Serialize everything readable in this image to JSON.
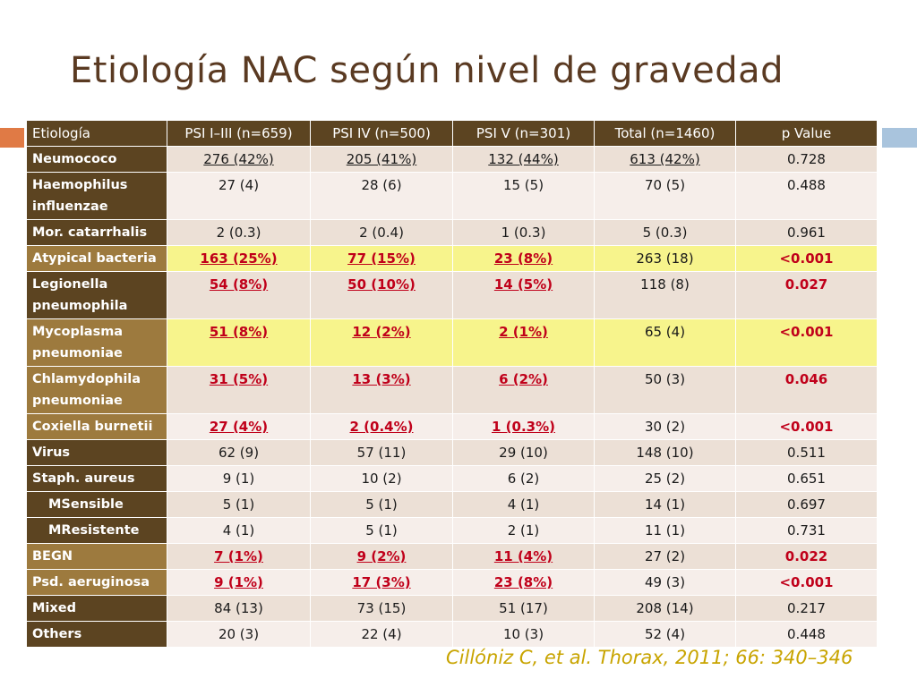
{
  "slide": {
    "title": "Etiología NAC según nivel de gravedad",
    "citation": "Cillóniz C, et al. Thorax, 2011;  66: 340–346"
  },
  "table": {
    "headers": [
      "Etiología",
      "PSI I–III (n=659)",
      "PSI IV (n=500)",
      "PSI V (n=301)",
      "Total (n=1460)",
      "p Value"
    ],
    "rows": [
      {
        "label": "Neumococo",
        "cells": [
          "276 (42%)",
          "205 (41%)",
          "132 (44%)",
          "613 (42%)",
          "0.728"
        ]
      },
      {
        "label": "Haemophilus influenzae",
        "cells": [
          "27 (4)",
          "28 (6)",
          "15 (5)",
          "70 (5)",
          "0.488"
        ]
      },
      {
        "label": "Mor. catarrhalis",
        "cells": [
          "2 (0.3)",
          "2 (0.4)",
          "1 (0.3)",
          "5 (0.3)",
          "0.961"
        ]
      },
      {
        "label": "Atypical bacteria",
        "cells": [
          "163 (25%)",
          "77 (15%)",
          "23 (8%)",
          "263 (18)",
          "<0.001"
        ]
      },
      {
        "label": "Legionella pneumophila",
        "cells": [
          "54 (8%)",
          "50 (10%)",
          "14 (5%)",
          "118 (8)",
          "0.027"
        ]
      },
      {
        "label": "Mycoplasma pneumoniae",
        "cells": [
          "51 (8%)",
          "12 (2%)",
          "2 (1%)",
          "65 (4)",
          "<0.001"
        ]
      },
      {
        "label": "Chlamydophila pneumoniae",
        "cells": [
          "31 (5%)",
          "13 (3%)",
          "6 (2%)",
          "50 (3)",
          "0.046"
        ]
      },
      {
        "label": "Coxiella burnetii",
        "cells": [
          "27 (4%)",
          "2 (0.4%)",
          "1 (0.3%)",
          "30 (2)",
          "<0.001"
        ]
      },
      {
        "label": "Virus",
        "cells": [
          "62 (9)",
          "57 (11)",
          "29 (10)",
          "148 (10)",
          "0.511"
        ]
      },
      {
        "label": "Staph.  aureus",
        "cells": [
          "9 (1)",
          "10 (2)",
          "6 (2)",
          "25 (2)",
          "0.651"
        ]
      },
      {
        "label": "MSensible",
        "cells": [
          "5 (1)",
          "5 (1)",
          "4 (1)",
          "14 (1)",
          "0.697"
        ]
      },
      {
        "label": "MResistente",
        "cells": [
          "4 (1)",
          "5 (1)",
          "2 (1)",
          "11 (1)",
          "0.731"
        ]
      },
      {
        "label": "BEGN",
        "cells": [
          "7 (1%)",
          "9 (2%)",
          "11 (4%)",
          "27 (2)",
          "0.022"
        ]
      },
      {
        "label": "Psd. aeruginosa",
        "cells": [
          "9 (1%)",
          "17 (3%)",
          "23 (8%)",
          "49 (3)",
          "<0.001"
        ]
      },
      {
        "label": "Mixed",
        "cells": [
          "84 (13)",
          "73 (15)",
          "51 (17)",
          "208 (14)",
          "0.217"
        ]
      },
      {
        "label": "Others",
        "cells": [
          "20 (3)",
          "22 (4)",
          "10 (3)",
          "52 (4)",
          "0.448"
        ]
      }
    ]
  },
  "colors": {
    "title": "#5a3a22",
    "header_bg": "#5c4421",
    "label_dark": "#5c4421",
    "label_light": "#9d7a3e",
    "highlight": "#f7f48c",
    "significant_text": "#c0001a",
    "citation": "#c8a400",
    "accent_left": "#e07a45",
    "accent_right": "#a9c4dd"
  }
}
